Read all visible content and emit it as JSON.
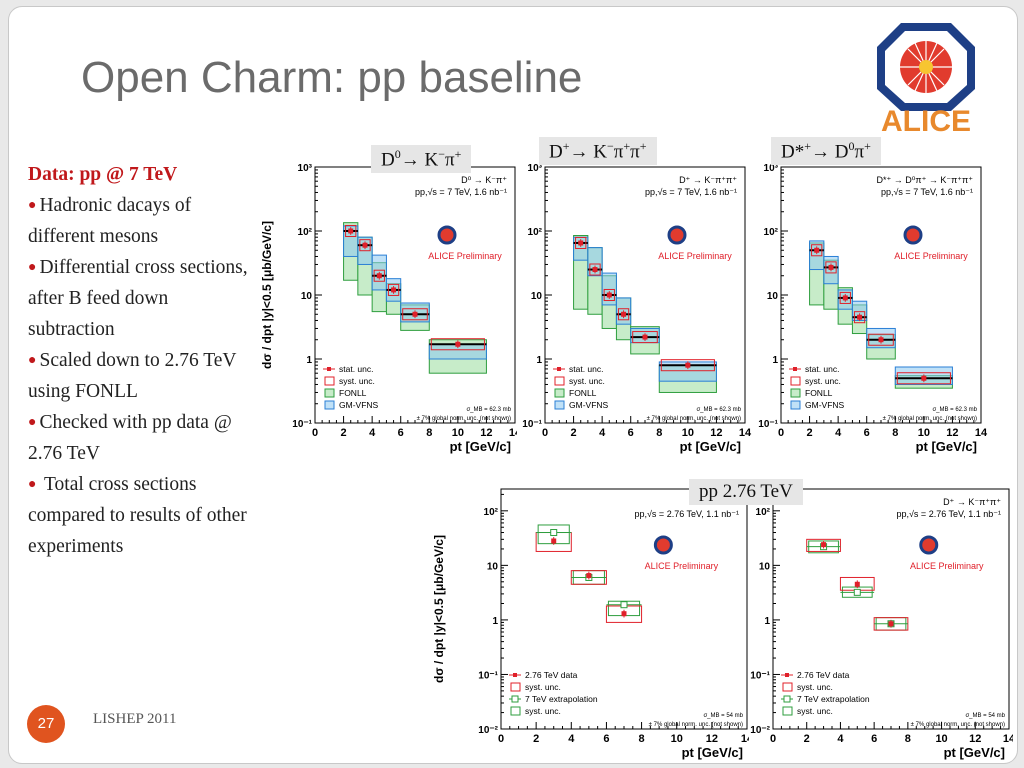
{
  "slide": {
    "title": "Open Charm: pp baseline",
    "logo_text": "ALICE",
    "page_number": "27",
    "footer": "LISHEP 2011",
    "bullets_header": "Data: pp @ 7 TeV",
    "bullets": [
      "Hadronic dacays of different mesons",
      "Differential cross sections, after B feed down subtraction",
      "Scaled down to 2.76 TeV using FONLL",
      "Checked with pp data @ 2.76 TeV",
      " Total cross sections compared to results of other experiments"
    ],
    "pp276_label": "pp 2.76 TeV"
  },
  "colors": {
    "accent_red": "#c0181b",
    "stat": "#e0202a",
    "syst": "#e0202a",
    "fonll": "#2e9e3e",
    "gmvfns": "#2a7fd6",
    "footer_circle": "#e0541f"
  },
  "chart_data": [
    {
      "id": "d0_7tev",
      "type": "scatter",
      "channel_label": {
        "base": "D",
        "sup": "0",
        "rest": "→ K",
        "sup2": "−",
        "rest2": "π",
        "sup3": "+"
      },
      "in_plot_lines": [
        "D⁰ → K⁻π⁺",
        "pp,√s = 7 TeV, 1.6 nb⁻¹"
      ],
      "preliminary": "ALICE Preliminary",
      "ylabel": "dσ / dpt |y|<0.5 [μb/GeV/c]",
      "xlabel": "pt [GeV/c]",
      "xlim": [
        0,
        14
      ],
      "ylim_log10": [
        -1,
        3
      ],
      "yscale": "log",
      "xticks": [
        0,
        2,
        4,
        6,
        8,
        10,
        12,
        14
      ],
      "yticks": [
        "10⁻¹",
        "1",
        "10",
        "10²",
        "10³"
      ],
      "legend": [
        "stat. unc.",
        "syst. unc.",
        "FONLL",
        "GM-VFNS"
      ],
      "norm_note": [
        "σ_MB = 62.3 mb",
        "± 7% global norm. unc. (not shown)"
      ],
      "points": [
        {
          "x": 2.5,
          "xlo": 2,
          "xhi": 3,
          "y": 100,
          "fonll": [
            17,
            135
          ],
          "gm": [
            40,
            120
          ]
        },
        {
          "x": 3.5,
          "xlo": 3,
          "xhi": 4,
          "y": 60,
          "fonll": [
            10,
            80
          ],
          "gm": [
            30,
            80
          ]
        },
        {
          "x": 4.5,
          "xlo": 4,
          "xhi": 5,
          "y": 20,
          "fonll": [
            5.5,
            32
          ],
          "gm": [
            12,
            42
          ]
        },
        {
          "x": 5.5,
          "xlo": 5,
          "xhi": 6,
          "y": 12,
          "fonll": [
            5,
            15
          ],
          "gm": [
            8,
            18
          ]
        },
        {
          "x": 7,
          "xlo": 6,
          "xhi": 8,
          "y": 5,
          "fonll": [
            2.8,
            7
          ],
          "gm": [
            3.8,
            7.5
          ]
        },
        {
          "x": 10,
          "xlo": 8,
          "xhi": 12,
          "y": 1.7,
          "fonll": [
            0.6,
            2
          ],
          "gm": [
            1.0,
            1.7
          ]
        }
      ]
    },
    {
      "id": "dplus_7tev",
      "type": "scatter",
      "channel_label": {
        "base": "D",
        "sup": "+",
        "rest": "→ K",
        "sup2": "−",
        "rest2": "π",
        "sup3": "+",
        "rest3": "π",
        "sup4": "+"
      },
      "in_plot_lines": [
        "D⁺ → K⁻π⁺π⁺",
        "pp,√s = 7 TeV, 1.6 nb⁻¹"
      ],
      "preliminary": "ALICE Preliminary",
      "xlabel": "pt [GeV/c]",
      "xlim": [
        0,
        14
      ],
      "ylim_log10": [
        -1,
        3
      ],
      "yscale": "log",
      "xticks": [
        0,
        2,
        4,
        6,
        8,
        10,
        12,
        14
      ],
      "yticks": [
        "10⁻¹",
        "1",
        "10",
        "10²",
        "10³"
      ],
      "legend": [
        "stat. unc.",
        "syst. unc.",
        "FONLL",
        "GM-VFNS"
      ],
      "norm_note": [
        "σ_MB = 62.3 mb",
        "± 7% global norm. unc. (not shown)"
      ],
      "points": [
        {
          "x": 2.5,
          "xlo": 2,
          "xhi": 3,
          "y": 65,
          "fonll": [
            6,
            85
          ],
          "gm": [
            35,
            80
          ]
        },
        {
          "x": 3.5,
          "xlo": 3,
          "xhi": 4,
          "y": 25,
          "fonll": [
            5,
            55
          ],
          "gm": [
            20,
            55
          ]
        },
        {
          "x": 4.5,
          "xlo": 4,
          "xhi": 5,
          "y": 10,
          "fonll": [
            3,
            20
          ],
          "gm": [
            7,
            22
          ]
        },
        {
          "x": 5.5,
          "xlo": 5,
          "xhi": 6,
          "y": 5,
          "fonll": [
            2,
            9
          ],
          "gm": [
            3.5,
            9
          ]
        },
        {
          "x": 7,
          "xlo": 6,
          "xhi": 8,
          "y": 2.2,
          "fonll": [
            1.2,
            3.2
          ],
          "gm": [
            1.8,
            3
          ]
        },
        {
          "x": 10,
          "xlo": 8,
          "xhi": 12,
          "y": 0.8,
          "fonll": [
            0.3,
            0.8
          ],
          "gm": [
            0.45,
            0.9
          ]
        }
      ]
    },
    {
      "id": "dstar_7tev",
      "type": "scatter",
      "channel_label": {
        "base": "D*",
        "sup": "+",
        "rest": "→ D",
        "sup2": "0",
        "rest2": "π",
        "sup3": "+"
      },
      "in_plot_lines": [
        "D*⁺ → D⁰π⁺ → K⁻π⁺π⁺",
        "pp,√s = 7 TeV, 1.6 nb⁻¹"
      ],
      "preliminary": "ALICE Preliminary",
      "xlabel": "pt [GeV/c]",
      "xlim": [
        0,
        14
      ],
      "ylim_log10": [
        -1,
        3
      ],
      "yscale": "log",
      "xticks": [
        0,
        2,
        4,
        6,
        8,
        10,
        12,
        14
      ],
      "yticks": [
        "10⁻¹",
        "1",
        "10",
        "10²",
        "10³"
      ],
      "legend": [
        "stat. unc.",
        "syst. unc.",
        "FONLL",
        "GM-VFNS"
      ],
      "norm_note": [
        "σ_MB = 62.3 mb",
        "± 7% global norm. unc. (not shown)"
      ],
      "points": [
        {
          "x": 2.5,
          "xlo": 2,
          "xhi": 3,
          "y": 50,
          "fonll": [
            7,
            65
          ],
          "gm": [
            25,
            70
          ]
        },
        {
          "x": 3.5,
          "xlo": 3,
          "xhi": 4,
          "y": 27,
          "fonll": [
            6,
            35
          ],
          "gm": [
            15,
            40
          ]
        },
        {
          "x": 4.5,
          "xlo": 4,
          "xhi": 5,
          "y": 9,
          "fonll": [
            3.5,
            13
          ],
          "gm": [
            6,
            12
          ]
        },
        {
          "x": 5.5,
          "xlo": 5,
          "xhi": 6,
          "y": 4.5,
          "fonll": [
            2.5,
            7
          ],
          "gm": [
            4,
            8
          ]
        },
        {
          "x": 7,
          "xlo": 6,
          "xhi": 8,
          "y": 2,
          "fonll": [
            1,
            2.4
          ],
          "gm": [
            1.5,
            3
          ]
        },
        {
          "x": 10,
          "xlo": 8,
          "xhi": 12,
          "y": 0.5,
          "fonll": [
            0.35,
            0.55
          ],
          "gm": [
            0.4,
            0.75
          ]
        }
      ]
    },
    {
      "id": "d0_276tev",
      "type": "scatter",
      "in_plot_lines": [
        "D⁰ → K⁻π⁺",
        "pp,√s = 2.76 TeV, 1.1 nb⁻¹"
      ],
      "preliminary": "ALICE Preliminary",
      "ylabel": "dσ / dpt |y|<0.5 [μb/GeV/c]",
      "xlabel": "pt [GeV/c]",
      "xlim": [
        0,
        14
      ],
      "ylim_log10": [
        -2,
        2.4
      ],
      "yscale": "log",
      "xticks": [
        0,
        2,
        4,
        6,
        8,
        10,
        12,
        14
      ],
      "yticks": [
        "10⁻²",
        "10⁻¹",
        "1",
        "10",
        "10²"
      ],
      "legend": [
        "2.76 TeV data",
        "syst. unc.",
        "7 TeV extrapolation",
        "syst. unc."
      ],
      "norm_note": [
        "σ_MB = 54 mb",
        "± 7% global norm. unc. (not shown)"
      ],
      "points": [
        {
          "x": 3,
          "xlo": 2,
          "xhi": 4,
          "y": 28,
          "data_syst": [
            18,
            40
          ],
          "extrap": 40,
          "extrap_syst": [
            25,
            55
          ]
        },
        {
          "x": 5,
          "xlo": 4,
          "xhi": 6,
          "y": 6.5,
          "data_syst": [
            4.5,
            8
          ],
          "extrap": 6,
          "extrap_syst": [
            4.5,
            8
          ]
        },
        {
          "x": 7,
          "xlo": 6,
          "xhi": 8,
          "y": 1.3,
          "data_syst": [
            0.9,
            1.8
          ],
          "extrap": 1.9,
          "extrap_syst": [
            1.2,
            2.2
          ]
        }
      ]
    },
    {
      "id": "dplus_276tev",
      "type": "scatter",
      "in_plot_lines": [
        "D⁺ → K⁻π⁺π⁺",
        "pp,√s = 2.76 TeV, 1.1 nb⁻¹"
      ],
      "preliminary": "ALICE Preliminary",
      "xlabel": "pt [GeV/c]",
      "xlim": [
        0,
        14
      ],
      "ylim_log10": [
        -2,
        2.4
      ],
      "yscale": "log",
      "xticks": [
        0,
        2,
        4,
        6,
        8,
        10,
        12,
        14
      ],
      "yticks": [
        "10⁻²",
        "10⁻¹",
        "1",
        "10",
        "10²"
      ],
      "legend": [
        "2.76 TeV data",
        "syst. unc.",
        "7 TeV extrapolation",
        "syst. unc."
      ],
      "norm_note": [
        "σ_MB = 54 mb",
        "± 7% global norm. unc. (not shown)"
      ],
      "points": [
        {
          "x": 3,
          "xlo": 2,
          "xhi": 4,
          "y": 24,
          "data_syst": [
            18,
            30
          ],
          "extrap": 22,
          "extrap_syst": [
            17,
            28
          ]
        },
        {
          "x": 5,
          "xlo": 4,
          "xhi": 6,
          "y": 4.5,
          "data_syst": [
            3.5,
            6
          ],
          "extrap": 3.2,
          "extrap_syst": [
            2.6,
            4
          ]
        },
        {
          "x": 7,
          "xlo": 6,
          "xhi": 8,
          "y": 0.85,
          "data_syst": [
            0.65,
            1.1
          ],
          "extrap": 0.85,
          "extrap_syst": [
            0.65,
            1.1
          ]
        }
      ]
    }
  ]
}
